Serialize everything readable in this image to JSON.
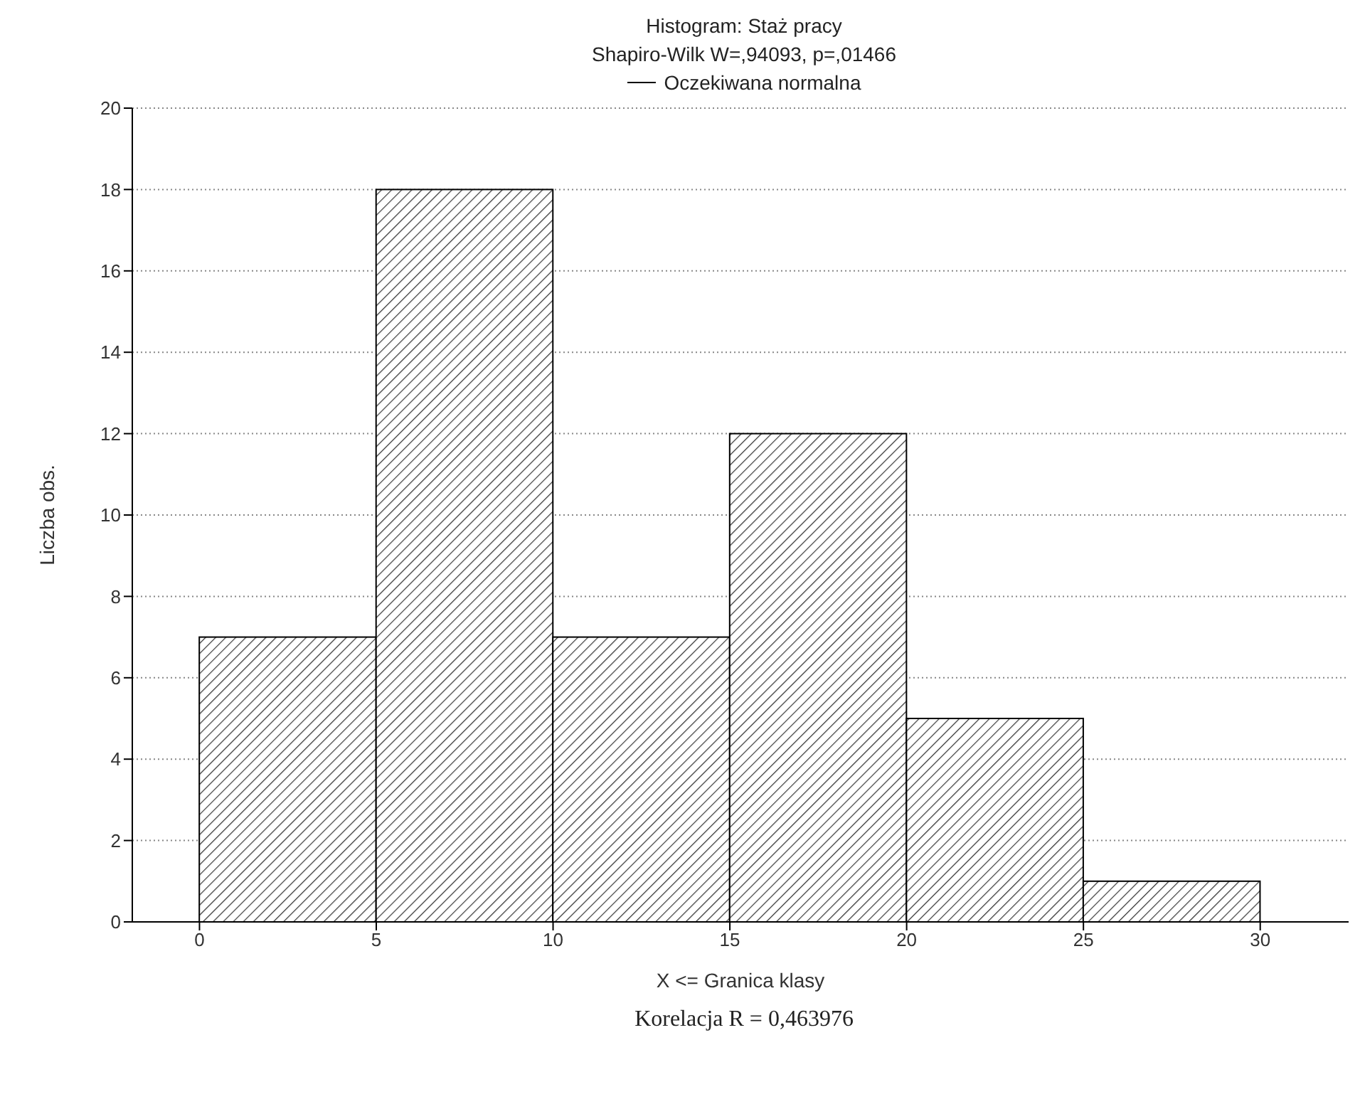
{
  "chart_data": {
    "type": "histogram",
    "title": "Histogram: Staż pracy",
    "subtitle": "Shapiro-Wilk W=,94093, p=,01466",
    "xlabel": "X <= Granica klasy",
    "ylabel": "Liczba obs.",
    "bins": [
      0,
      5,
      10,
      15,
      20,
      25,
      30
    ],
    "series": [
      {
        "color": "#000000",
        "values": [
          7,
          18,
          7,
          12,
          5,
          1
        ]
      },
      {
        "type": "line",
        "name": "Oczekiwana normalna",
        "color": "#000000",
        "values": [
          null,
          null,
          null,
          null,
          null,
          null
        ]
      }
    ],
    "xlim": [
      -1.9,
      32.5
    ],
    "xticks": [
      0,
      5,
      10,
      15,
      20,
      25,
      30
    ],
    "ylim": [
      0,
      20
    ],
    "yticks": [
      0,
      2,
      4,
      6,
      8,
      10,
      12,
      14,
      16,
      18,
      20
    ],
    "grid": "y",
    "legend": "top",
    "annotations": [
      "Korelacja R = 0,463976"
    ]
  }
}
